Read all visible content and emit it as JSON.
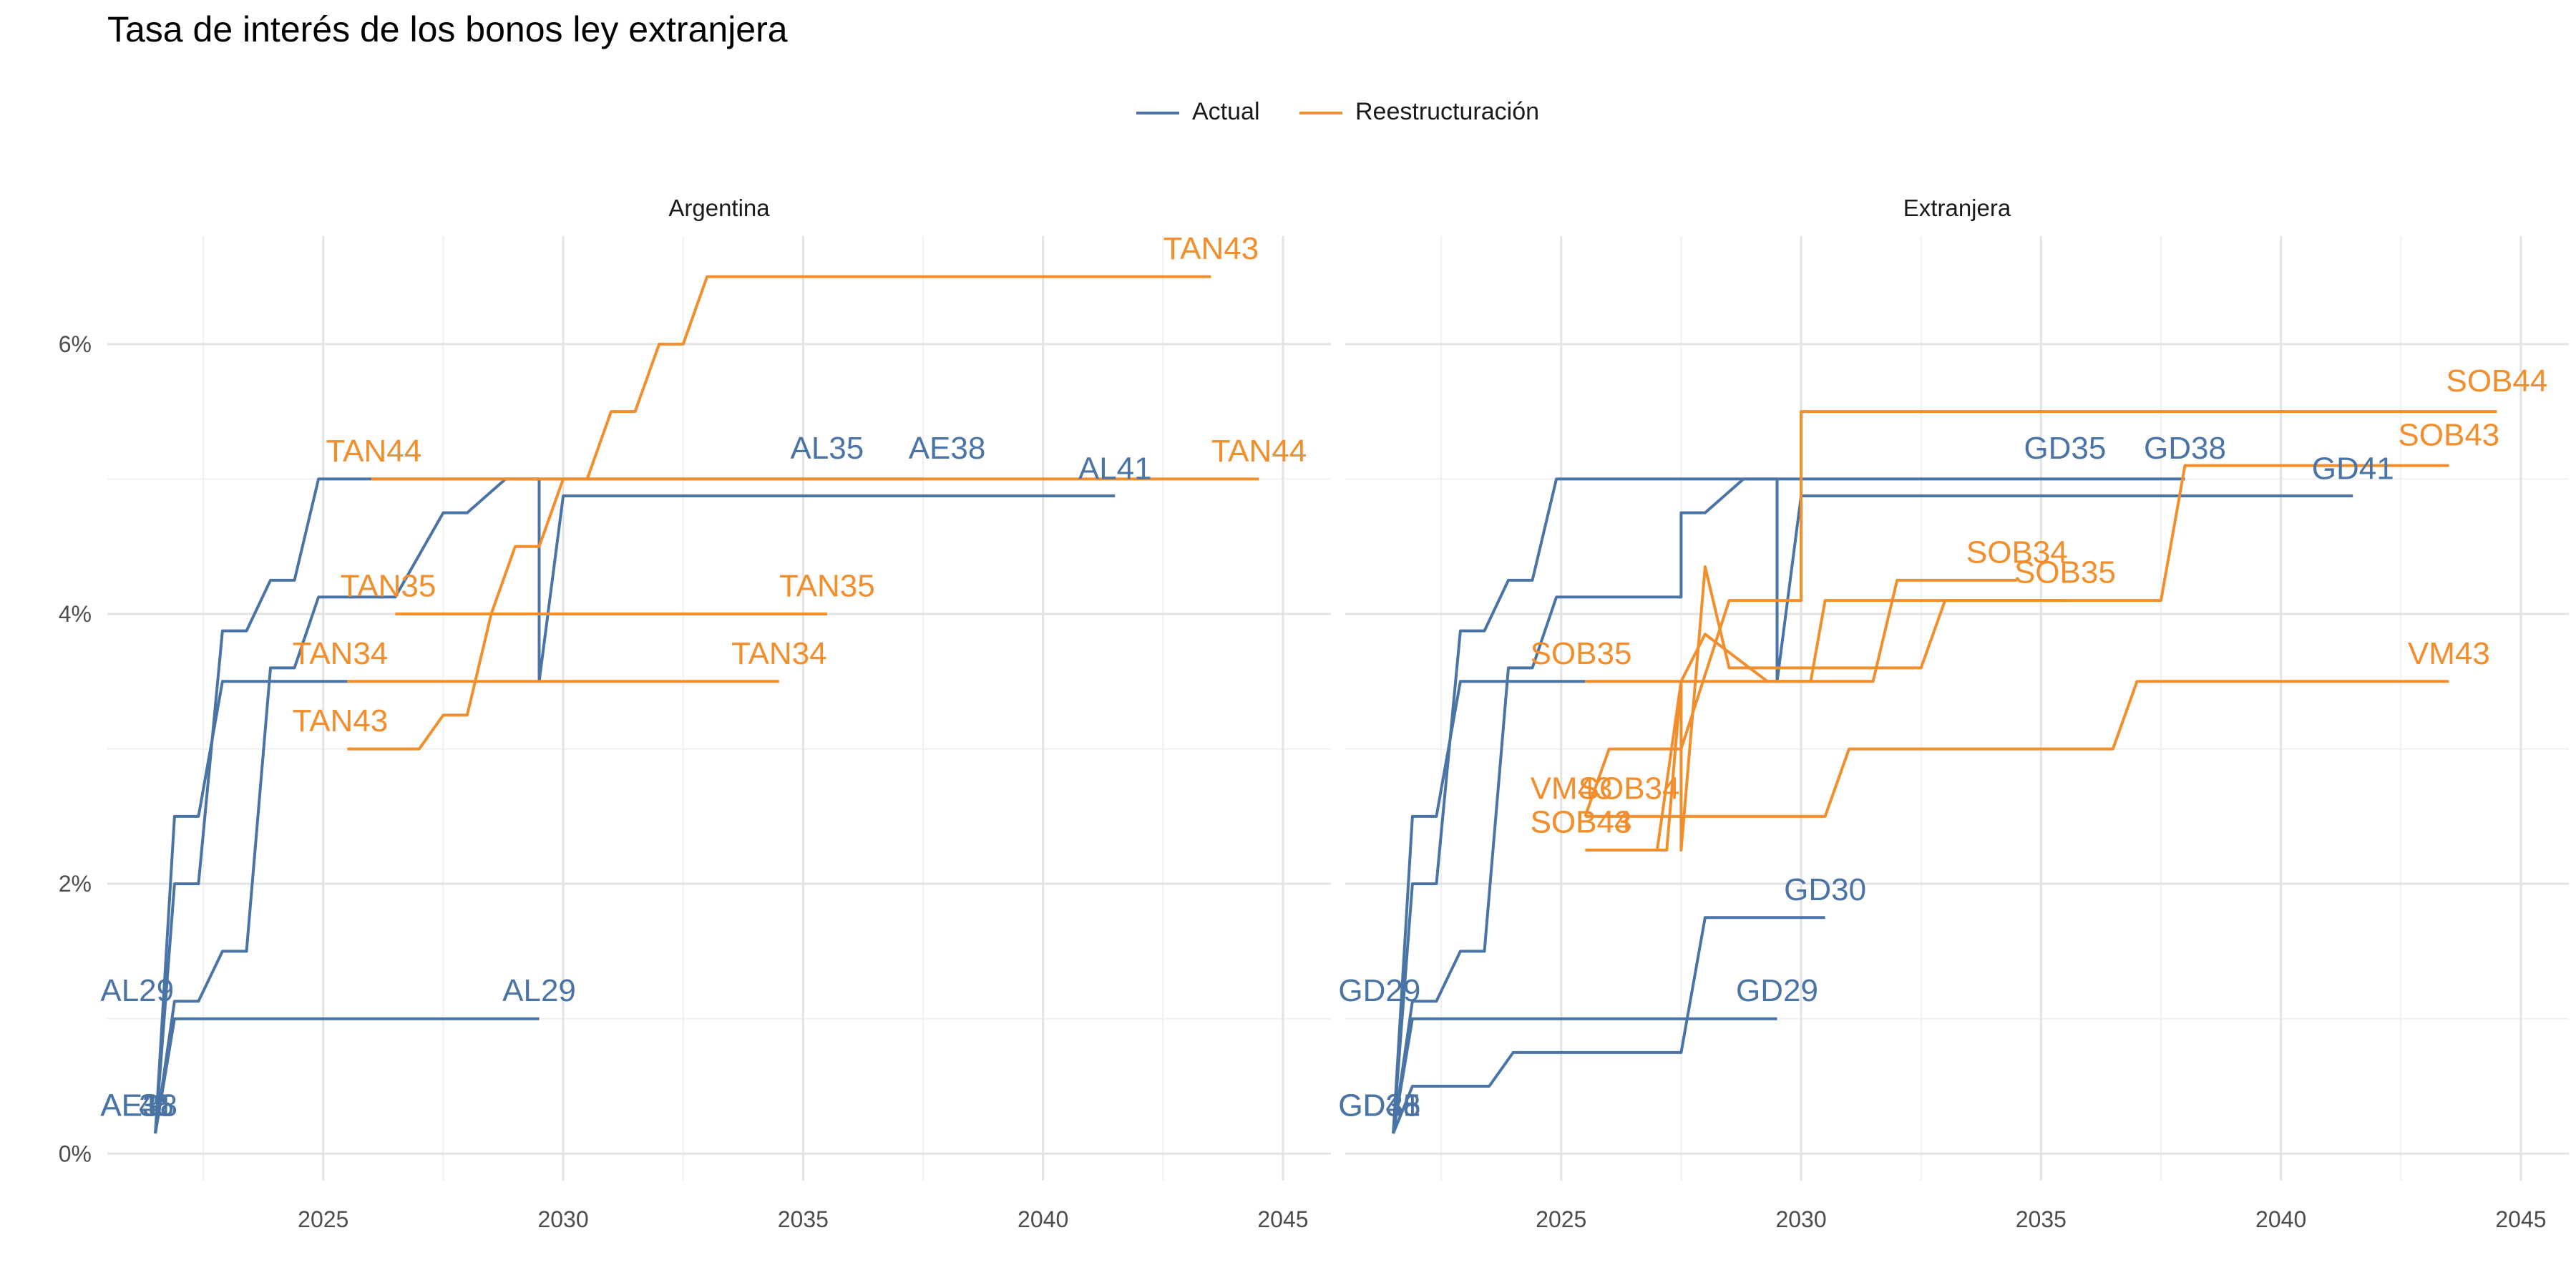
{
  "title": "Tasa de interés de los bonos ley extranjera",
  "legend": {
    "items": [
      {
        "label": "Actual",
        "color": "#4A74A6"
      },
      {
        "label": "Reestructuración",
        "color": "#F28E2B"
      }
    ]
  },
  "chart_data": {
    "type": "line",
    "title": "Tasa de interés de los bonos ley extranjera",
    "xlabel": "",
    "ylabel": "",
    "xlim": [
      2020.5,
      2046
    ],
    "ylim": [
      -0.002,
      0.068
    ],
    "x_ticks": [
      2025,
      2030,
      2035,
      2040,
      2045
    ],
    "y_ticks": [
      0,
      0.02,
      0.04,
      0.06
    ],
    "y_tick_labels": [
      "0%",
      "2%",
      "4%",
      "6%"
    ],
    "grid": true,
    "legend_position": "top",
    "colors": {
      "Actual": "#4A74A6",
      "Reestructuración": "#F28E2B"
    },
    "panels": [
      {
        "name": "Argentina",
        "series": [
          {
            "group": "Actual",
            "points": [
              [
                2021.5,
                0.0015
              ],
              [
                2021.9,
                0.01
              ],
              [
                2029.5,
                0.01
              ]
            ],
            "labels": [
              {
                "text": "AL29",
                "x": 2021.4,
                "y": 0.0113,
                "align": "end"
              },
              {
                "text": "AL29",
                "x": 2029.5,
                "y": 0.0113
              }
            ]
          },
          {
            "group": "Actual",
            "points": [
              [
                2021.5,
                0.0015
              ],
              [
                2021.9,
                0.0113
              ],
              [
                2022.4,
                0.0113
              ],
              [
                2022.9,
                0.015
              ],
              [
                2023.4,
                0.015
              ],
              [
                2023.9,
                0.036
              ],
              [
                2024.4,
                0.036
              ],
              [
                2024.9,
                0.04125
              ],
              [
                2026.5,
                0.04125
              ],
              [
                2027.5,
                0.0475
              ],
              [
                2028,
                0.0475
              ],
              [
                2028.8,
                0.05
              ],
              [
                2029.5,
                0.05
              ],
              [
                2029.5,
                0.035
              ],
              [
                2030,
                0.04875
              ],
              [
                2041.5,
                0.04875
              ]
            ],
            "labels": [
              {
                "text": "AL41",
                "x": 2041.5,
                "y": 0.05
              }
            ]
          },
          {
            "group": "Actual",
            "points": [
              [
                2021.5,
                0.0015
              ],
              [
                2021.9,
                0.02
              ],
              [
                2022.4,
                0.02
              ],
              [
                2022.9,
                0.03875
              ],
              [
                2023.4,
                0.03875
              ],
              [
                2023.9,
                0.0425
              ],
              [
                2024.4,
                0.0425
              ],
              [
                2024.9,
                0.05
              ],
              [
                2037.5,
                0.05
              ]
            ],
            "labels": [
              {
                "text": "AL35",
                "x": 2035.5,
                "y": 0.0515
              },
              {
                "text": "AE38",
                "x": 2038,
                "y": 0.0515
              }
            ]
          },
          {
            "group": "Actual",
            "points": [
              [
                2021.5,
                0.0015
              ],
              [
                2021.9,
                0.025
              ],
              [
                2022.4,
                0.025
              ],
              [
                2022.9,
                0.035
              ],
              [
                2025.5,
                0.035
              ]
            ],
            "labels": [
              {
                "text": "AE38",
                "x": 2021.4,
                "y": 0.0028,
                "align": "end"
              },
              {
                "text": "AL35",
                "x": 2021.4,
                "y": 0.0028,
                "align": "end"
              },
              {
                "text": "AL41",
                "x": 2021.4,
                "y": 0.0028,
                "align": "end"
              }
            ]
          },
          {
            "group": "Reestructuración",
            "points": [
              [
                2025.5,
                0.03
              ],
              [
                2027,
                0.03
              ],
              [
                2027.5,
                0.0325
              ],
              [
                2028,
                0.0325
              ],
              [
                2028.5,
                0.04
              ],
              [
                2029,
                0.045
              ],
              [
                2029.5,
                0.045
              ],
              [
                2030,
                0.05
              ],
              [
                2030.5,
                0.05
              ],
              [
                2031,
                0.055
              ],
              [
                2031.5,
                0.055
              ],
              [
                2032,
                0.06
              ],
              [
                2032.5,
                0.06
              ],
              [
                2033,
                0.065
              ],
              [
                2043.5,
                0.065
              ]
            ],
            "labels": [
              {
                "text": "TAN43",
                "x": 2025.4,
                "y": 0.0313,
                "align": "end"
              },
              {
                "text": "TAN43",
                "x": 2043.5,
                "y": 0.0663
              }
            ]
          },
          {
            "group": "Reestructuración",
            "points": [
              [
                2025.5,
                0.035
              ],
              [
                2034.5,
                0.035
              ]
            ],
            "labels": [
              {
                "text": "TAN34",
                "x": 2025.4,
                "y": 0.0363,
                "align": "end"
              },
              {
                "text": "TAN34",
                "x": 2034.5,
                "y": 0.0363
              }
            ]
          },
          {
            "group": "Reestructuración",
            "points": [
              [
                2026.5,
                0.04
              ],
              [
                2035.5,
                0.04
              ]
            ],
            "labels": [
              {
                "text": "TAN35",
                "x": 2026.4,
                "y": 0.0413,
                "align": "end"
              },
              {
                "text": "TAN35",
                "x": 2035.5,
                "y": 0.0413
              }
            ]
          },
          {
            "group": "Reestructuración",
            "points": [
              [
                2026,
                0.05
              ],
              [
                2044.5,
                0.05
              ]
            ],
            "labels": [
              {
                "text": "TAN44",
                "x": 2026.1,
                "y": 0.0513,
                "align": "end"
              },
              {
                "text": "TAN44",
                "x": 2044.5,
                "y": 0.0513
              }
            ]
          }
        ]
      },
      {
        "name": "Extranjera",
        "series": [
          {
            "group": "Actual",
            "points": [
              [
                2021.5,
                0.0015
              ],
              [
                2021.9,
                0.01
              ],
              [
                2029.5,
                0.01
              ]
            ],
            "labels": [
              {
                "text": "GD29",
                "x": 2021.4,
                "y": 0.0113,
                "align": "end"
              },
              {
                "text": "GD29",
                "x": 2029.5,
                "y": 0.0113
              }
            ]
          },
          {
            "group": "Actual",
            "points": [
              [
                2021.5,
                0.0015
              ],
              [
                2021.9,
                0.005
              ],
              [
                2023.5,
                0.005
              ],
              [
                2024,
                0.0075
              ],
              [
                2027.5,
                0.0075
              ],
              [
                2028,
                0.0175
              ],
              [
                2030.5,
                0.0175
              ]
            ],
            "labels": [
              {
                "text": "GD30",
                "x": 2030.5,
                "y": 0.0188
              }
            ]
          },
          {
            "group": "Actual",
            "points": [
              [
                2021.5,
                0.0015
              ],
              [
                2021.9,
                0.0113
              ],
              [
                2022.4,
                0.0113
              ],
              [
                2022.9,
                0.015
              ],
              [
                2023.4,
                0.015
              ],
              [
                2023.9,
                0.036
              ],
              [
                2024.4,
                0.036
              ],
              [
                2024.9,
                0.04125
              ],
              [
                2026.5,
                0.04125
              ],
              [
                2027.5,
                0.04125
              ],
              [
                2027.5,
                0.0475
              ],
              [
                2028,
                0.0475
              ],
              [
                2028.8,
                0.05
              ],
              [
                2029.5,
                0.05
              ],
              [
                2029.5,
                0.035
              ],
              [
                2030,
                0.04875
              ],
              [
                2041.5,
                0.04875
              ]
            ],
            "labels": [
              {
                "text": "GD41",
                "x": 2041.5,
                "y": 0.05
              }
            ]
          },
          {
            "group": "Actual",
            "points": [
              [
                2021.5,
                0.0015
              ],
              [
                2021.9,
                0.02
              ],
              [
                2022.4,
                0.02
              ],
              [
                2022.9,
                0.03875
              ],
              [
                2023.4,
                0.03875
              ],
              [
                2023.9,
                0.0425
              ],
              [
                2024.4,
                0.0425
              ],
              [
                2024.9,
                0.05
              ],
              [
                2038,
                0.05
              ]
            ],
            "labels": [
              {
                "text": "GD35",
                "x": 2035.5,
                "y": 0.0515
              },
              {
                "text": "GD38",
                "x": 2038,
                "y": 0.0515
              }
            ]
          },
          {
            "group": "Actual",
            "points": [
              [
                2021.5,
                0.0015
              ],
              [
                2021.9,
                0.025
              ],
              [
                2022.4,
                0.025
              ],
              [
                2022.9,
                0.035
              ],
              [
                2025.5,
                0.035
              ]
            ],
            "labels": [
              {
                "text": "GD35",
                "x": 2021.4,
                "y": 0.0028,
                "align": "end"
              },
              {
                "text": "GD38",
                "x": 2021.4,
                "y": 0.0028,
                "align": "end"
              },
              {
                "text": "GD41",
                "x": 2021.4,
                "y": 0.0028,
                "align": "end"
              }
            ]
          },
          {
            "group": "Reestructuración",
            "points": [
              [
                2025.5,
                0.0225
              ],
              [
                2027,
                0.0225
              ],
              [
                2027.5,
                0.035
              ],
              [
                2027.5,
                0.0225
              ],
              [
                2028,
                0.0435
              ],
              [
                2028.5,
                0.036
              ],
              [
                2032.5,
                0.036
              ],
              [
                2033,
                0.041
              ],
              [
                2037.5,
                0.041
              ],
              [
                2038,
                0.051
              ],
              [
                2043.5,
                0.051
              ]
            ],
            "labels": [
              {
                "text": "SOB43",
                "x": 2025.4,
                "y": 0.0238,
                "align": "end"
              },
              {
                "text": "SOB43",
                "x": 2043.5,
                "y": 0.0525
              }
            ]
          },
          {
            "group": "Reestructuración",
            "points": [
              [
                2025.5,
                0.025
              ],
              [
                2026,
                0.03
              ],
              [
                2027.5,
                0.03
              ],
              [
                2028.5,
                0.041
              ],
              [
                2030,
                0.041
              ],
              [
                2030,
                0.055
              ],
              [
                2044.5,
                0.055
              ]
            ],
            "labels": [
              {
                "text": "SOB44",
                "x": 2025.4,
                "y": 0.0238,
                "align": "end"
              },
              {
                "text": "SOB44",
                "x": 2044.5,
                "y": 0.0565
              }
            ]
          },
          {
            "group": "Reestructuración",
            "points": [
              [
                2025.5,
                0.035
              ],
              [
                2031.5,
                0.035
              ],
              [
                2032,
                0.0425
              ],
              [
                2034.5,
                0.0425
              ]
            ],
            "labels": [
              {
                "text": "SOB35",
                "x": 2025.4,
                "y": 0.0363,
                "align": "end"
              },
              {
                "text": "SOB34",
                "x": 2034.5,
                "y": 0.0438
              }
            ]
          },
          {
            "group": "Reestructuración",
            "points": [
              [
                2026.5,
                0.0225
              ],
              [
                2027.2,
                0.0225
              ],
              [
                2027.5,
                0.035
              ],
              [
                2028,
                0.0385
              ],
              [
                2029.3,
                0.035
              ],
              [
                2030.2,
                0.035
              ],
              [
                2030.5,
                0.041
              ],
              [
                2035.5,
                0.041
              ]
            ],
            "labels": [
              {
                "text": "SOB34",
                "x": 2026.4,
                "y": 0.0263,
                "align": "end"
              },
              {
                "text": "SOB35",
                "x": 2035.5,
                "y": 0.0423
              }
            ]
          },
          {
            "group": "Reestructuración",
            "points": [
              [
                2025.5,
                0.025
              ],
              [
                2030.5,
                0.025
              ],
              [
                2031,
                0.03
              ],
              [
                2036.5,
                0.03
              ],
              [
                2037,
                0.035
              ],
              [
                2043.5,
                0.035
              ]
            ],
            "labels": [
              {
                "text": "VM43",
                "x": 2025.4,
                "y": 0.0263,
                "align": "end"
              },
              {
                "text": "VM43",
                "x": 2043.5,
                "y": 0.0363
              }
            ]
          }
        ]
      }
    ]
  }
}
